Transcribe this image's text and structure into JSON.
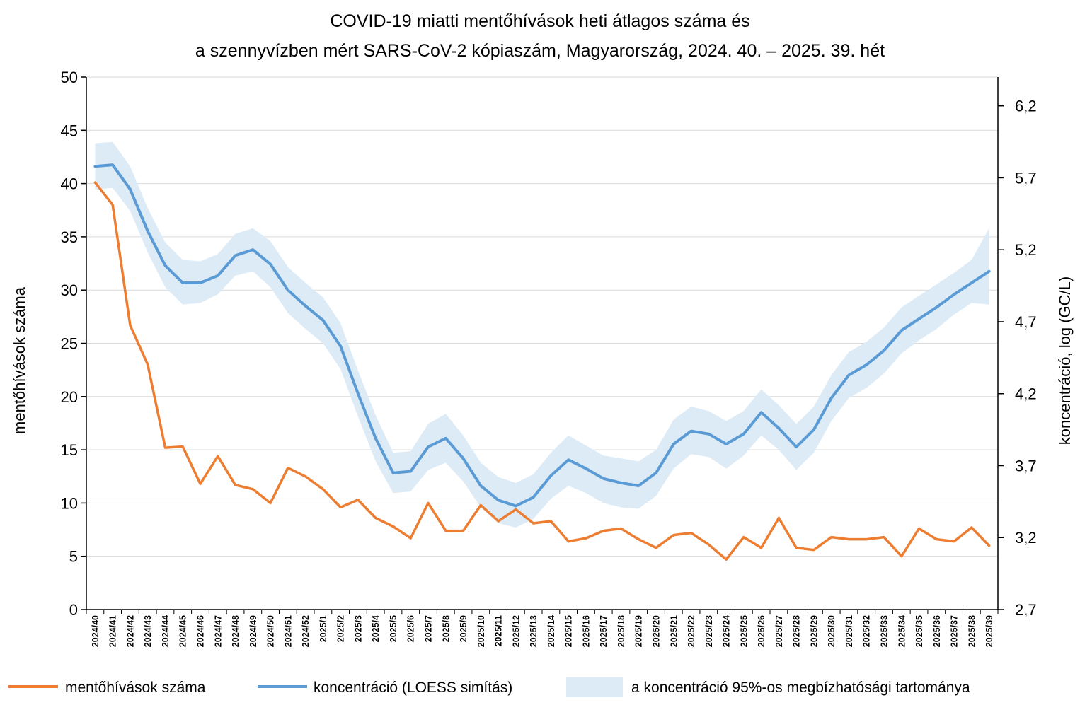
{
  "chart_data": {
    "type": "line",
    "title_lines": [
      "COVID-19 miatti mentőhívások heti átlagos száma és",
      "a szennyvízben mért SARS-CoV-2 kópiaszám, Magyarország, 2024. 40. – 2025. 39. hét"
    ],
    "ylabel": "mentőhívások száma",
    "y2label": "koncentráció, log (GC/L)",
    "ylim": [
      0,
      50
    ],
    "y_ticks": [
      "0",
      "5",
      "10",
      "15",
      "20",
      "25",
      "30",
      "35",
      "40",
      "45",
      "50"
    ],
    "y2lim": [
      2.7,
      6.4
    ],
    "y2_ticks": [
      "2,7",
      "3,2",
      "3,7",
      "4,2",
      "4,7",
      "5,2",
      "5,7",
      "6,2"
    ],
    "grid": true,
    "legend_position": "bottom",
    "categories": [
      "2024/40",
      "2024/41",
      "2024/42",
      "2024/43",
      "2024/44",
      "2024/45",
      "2024/46",
      "2024/47",
      "2024/48",
      "2024/49",
      "2024/50",
      "2024/51",
      "2024/52",
      "2025/1",
      "2025/2",
      "2025/3",
      "2025/4",
      "2025/5",
      "2025/6",
      "2025/7",
      "2025/8",
      "2025/9",
      "2025/10",
      "2025/11",
      "2025/12",
      "2025/13",
      "2025/14",
      "2025/15",
      "2025/16",
      "2025/17",
      "2025/18",
      "2025/19",
      "2025/20",
      "2025/21",
      "2025/22",
      "2025/23",
      "2025/24",
      "2025/25",
      "2025/26",
      "2025/27",
      "2025/28",
      "2025/29",
      "2025/30",
      "2025/31",
      "2025/32",
      "2025/33",
      "2025/34",
      "2025/35",
      "2025/36",
      "2025/37",
      "2025/38",
      "2025/39"
    ],
    "series": [
      {
        "name": "mentőhívások száma",
        "axis": "left",
        "color": "#ED7D31",
        "values": [
          40.1,
          38.0,
          26.7,
          23.0,
          15.2,
          15.3,
          11.8,
          14.4,
          11.7,
          11.3,
          10.0,
          13.3,
          12.5,
          11.3,
          9.6,
          10.3,
          8.6,
          7.8,
          6.7,
          10.0,
          7.4,
          7.4,
          9.8,
          8.3,
          9.4,
          8.1,
          8.3,
          6.4,
          6.7,
          7.4,
          7.6,
          6.6,
          5.8,
          7.0,
          7.2,
          6.1,
          4.7,
          6.8,
          5.8,
          8.6,
          5.8,
          5.6,
          6.8,
          6.6,
          6.6,
          6.8,
          5.0,
          7.6,
          6.6,
          6.4,
          7.7,
          6.0
        ]
      },
      {
        "name": "koncentráció (LOESS simítás)",
        "axis": "right",
        "color": "#5B9BD5",
        "values": [
          5.78,
          5.79,
          5.62,
          5.33,
          5.09,
          4.97,
          4.97,
          5.02,
          5.16,
          5.2,
          5.1,
          4.92,
          4.81,
          4.71,
          4.53,
          4.2,
          3.89,
          3.65,
          3.66,
          3.83,
          3.89,
          3.75,
          3.56,
          3.46,
          3.42,
          3.48,
          3.63,
          3.74,
          3.68,
          3.61,
          3.58,
          3.56,
          3.65,
          3.85,
          3.94,
          3.92,
          3.85,
          3.92,
          4.07,
          3.96,
          3.83,
          3.95,
          4.17,
          4.33,
          4.4,
          4.5,
          4.64,
          4.72,
          4.8,
          4.89,
          4.97,
          5.05
        ]
      }
    ],
    "band": {
      "name": "a koncentráció 95%-os megbízhatósági tartománya",
      "axis": "right",
      "color": "#DDEBF7",
      "lower": [
        5.62,
        5.63,
        5.47,
        5.18,
        4.94,
        4.82,
        4.83,
        4.89,
        5.02,
        5.05,
        4.94,
        4.76,
        4.65,
        4.55,
        4.37,
        4.04,
        3.73,
        3.51,
        3.52,
        3.67,
        3.72,
        3.59,
        3.41,
        3.3,
        3.27,
        3.33,
        3.47,
        3.56,
        3.51,
        3.44,
        3.41,
        3.4,
        3.49,
        3.68,
        3.78,
        3.76,
        3.68,
        3.77,
        3.91,
        3.81,
        3.67,
        3.79,
        4.01,
        4.17,
        4.24,
        4.34,
        4.48,
        4.57,
        4.65,
        4.75,
        4.83,
        4.82
      ],
      "upper": [
        5.94,
        5.95,
        5.78,
        5.49,
        5.25,
        5.13,
        5.12,
        5.17,
        5.31,
        5.35,
        5.26,
        5.08,
        4.97,
        4.87,
        4.69,
        4.36,
        4.05,
        3.79,
        3.8,
        3.99,
        4.06,
        3.91,
        3.72,
        3.62,
        3.58,
        3.64,
        3.79,
        3.91,
        3.84,
        3.77,
        3.75,
        3.73,
        3.81,
        4.02,
        4.11,
        4.08,
        4.01,
        4.08,
        4.23,
        4.12,
        3.99,
        4.11,
        4.33,
        4.49,
        4.56,
        4.66,
        4.8,
        4.88,
        4.96,
        5.04,
        5.13,
        5.35
      ]
    }
  }
}
